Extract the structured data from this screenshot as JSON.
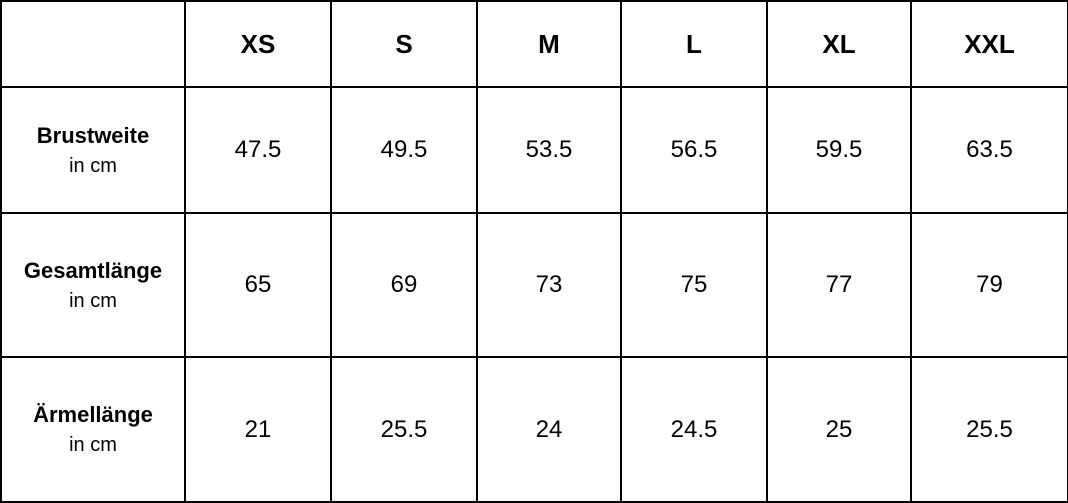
{
  "table": {
    "sizes": [
      "XS",
      "S",
      "M",
      "L",
      "XL",
      "XXL"
    ],
    "rows": [
      {
        "label": "Brustweite",
        "unit": "in cm",
        "values": [
          "47.5",
          "49.5",
          "53.5",
          "56.5",
          "59.5",
          "63.5"
        ]
      },
      {
        "label": "Gesamtlänge",
        "unit": "in cm",
        "values": [
          "65",
          "69",
          "73",
          "75",
          "77",
          "79"
        ]
      },
      {
        "label": "Ärmellänge",
        "unit": "in cm",
        "values": [
          "21",
          "25.5",
          "24",
          "24.5",
          "25",
          "25.5"
        ]
      }
    ]
  }
}
